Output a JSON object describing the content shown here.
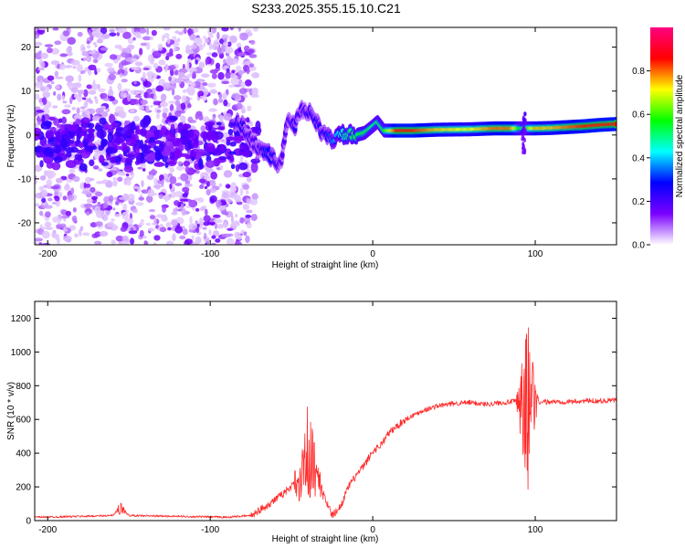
{
  "title": "S233.2025.355.15.10.C21",
  "chart_data": [
    {
      "type": "heatmap",
      "xlabel": "Height of straight line (km)",
      "ylabel": "Frequency (Hz)",
      "xlim": [
        -208,
        150
      ],
      "ylim": [
        -25,
        24.5
      ],
      "xticks": [
        -200,
        -100,
        0,
        100
      ],
      "yticks": [
        -20,
        -10,
        0,
        10,
        20
      ],
      "grid": false,
      "colorbar": {
        "label": "Normalized spectral amplitude",
        "range": [
          0,
          1
        ],
        "ticks": [
          0.0,
          0.2,
          0.4,
          0.6,
          0.8
        ],
        "tick_labels": [
          "0.0",
          "0.2",
          "0.4",
          "0.6",
          "0.8"
        ],
        "colors": [
          "#ffffff",
          "#7a00ff",
          "#0000ff",
          "#00ffff",
          "#00ff00",
          "#ffff00",
          "#ff0000",
          "#ff0080"
        ]
      },
      "ridge": [
        {
          "x": -85,
          "y": 3,
          "amp": 0.25
        },
        {
          "x": -80,
          "y": 2,
          "amp": 0.25
        },
        {
          "x": -75,
          "y": -1,
          "amp": 0.2
        },
        {
          "x": -70,
          "y": -3,
          "amp": 0.2
        },
        {
          "x": -65,
          "y": -4,
          "amp": 0.3
        },
        {
          "x": -60,
          "y": -6,
          "amp": 0.25
        },
        {
          "x": -57,
          "y": -7,
          "amp": 0.2
        },
        {
          "x": -52,
          "y": 4,
          "amp": 0.2
        },
        {
          "x": -48,
          "y": 2,
          "amp": 0.25
        },
        {
          "x": -44,
          "y": 6,
          "amp": 0.2
        },
        {
          "x": -38,
          "y": 5,
          "amp": 0.25
        },
        {
          "x": -35,
          "y": 3,
          "amp": 0.25
        },
        {
          "x": -30,
          "y": 0,
          "amp": 0.25
        },
        {
          "x": -25,
          "y": -1,
          "amp": 0.35
        },
        {
          "x": -20,
          "y": 0,
          "amp": 0.45
        },
        {
          "x": -10,
          "y": 0,
          "amp": 0.55
        },
        {
          "x": -5,
          "y": 0.5,
          "amp": 0.55
        },
        {
          "x": 0,
          "y": 2,
          "amp": 0.5
        },
        {
          "x": 3,
          "y": 3,
          "amp": 0.5
        },
        {
          "x": 7,
          "y": 1,
          "amp": 0.55
        },
        {
          "x": 15,
          "y": 1,
          "amp": 0.85
        },
        {
          "x": 25,
          "y": 1,
          "amp": 0.85
        },
        {
          "x": 40,
          "y": 1.2,
          "amp": 0.75
        },
        {
          "x": 60,
          "y": 1.3,
          "amp": 0.7
        },
        {
          "x": 75,
          "y": 1.5,
          "amp": 0.8
        },
        {
          "x": 85,
          "y": 1.5,
          "amp": 0.8
        },
        {
          "x": 92,
          "y": 1.5,
          "amp": 0.5
        },
        {
          "x": 100,
          "y": 1.5,
          "amp": 0.75
        },
        {
          "x": 110,
          "y": 1.6,
          "amp": 0.75
        },
        {
          "x": 120,
          "y": 1.8,
          "amp": 0.8
        },
        {
          "x": 130,
          "y": 2.0,
          "amp": 0.85
        },
        {
          "x": 140,
          "y": 2.3,
          "amp": 0.85
        },
        {
          "x": 150,
          "y": 2.5,
          "amp": 0.85
        }
      ]
    },
    {
      "type": "line",
      "xlabel": "Height of straight line (km)",
      "ylabel": "SNR (10 * v/v)",
      "xlim": [
        -208,
        150
      ],
      "ylim": [
        0,
        1300
      ],
      "xticks": [
        -200,
        -100,
        0,
        100
      ],
      "yticks": [
        0,
        200,
        400,
        600,
        800,
        1000,
        1200
      ],
      "grid": false,
      "color": "#ff2a2a",
      "series": [
        {
          "name": "SNR",
          "x": [
            -208,
            -180,
            -160,
            -155,
            -150,
            -120,
            -90,
            -75,
            -65,
            -55,
            -45,
            -40,
            -35,
            -30,
            -25,
            -20,
            -15,
            -10,
            -5,
            0,
            5,
            10,
            20,
            30,
            40,
            50,
            60,
            70,
            80,
            90,
            93,
            95,
            97,
            100,
            110,
            120,
            130,
            140,
            150
          ],
          "y": [
            20,
            25,
            30,
            80,
            30,
            25,
            20,
            30,
            90,
            160,
            260,
            380,
            300,
            150,
            30,
            80,
            200,
            270,
            330,
            410,
            450,
            520,
            600,
            650,
            680,
            695,
            700,
            690,
            700,
            710,
            650,
            650,
            700,
            700,
            705,
            705,
            710,
            710,
            715
          ]
        }
      ],
      "bursts": [
        {
          "x": -40,
          "width": 12,
          "amp": 320
        },
        {
          "x": 95,
          "width": 8,
          "amp": 600
        },
        {
          "x": -155,
          "width": 4,
          "amp": 50
        }
      ]
    }
  ]
}
